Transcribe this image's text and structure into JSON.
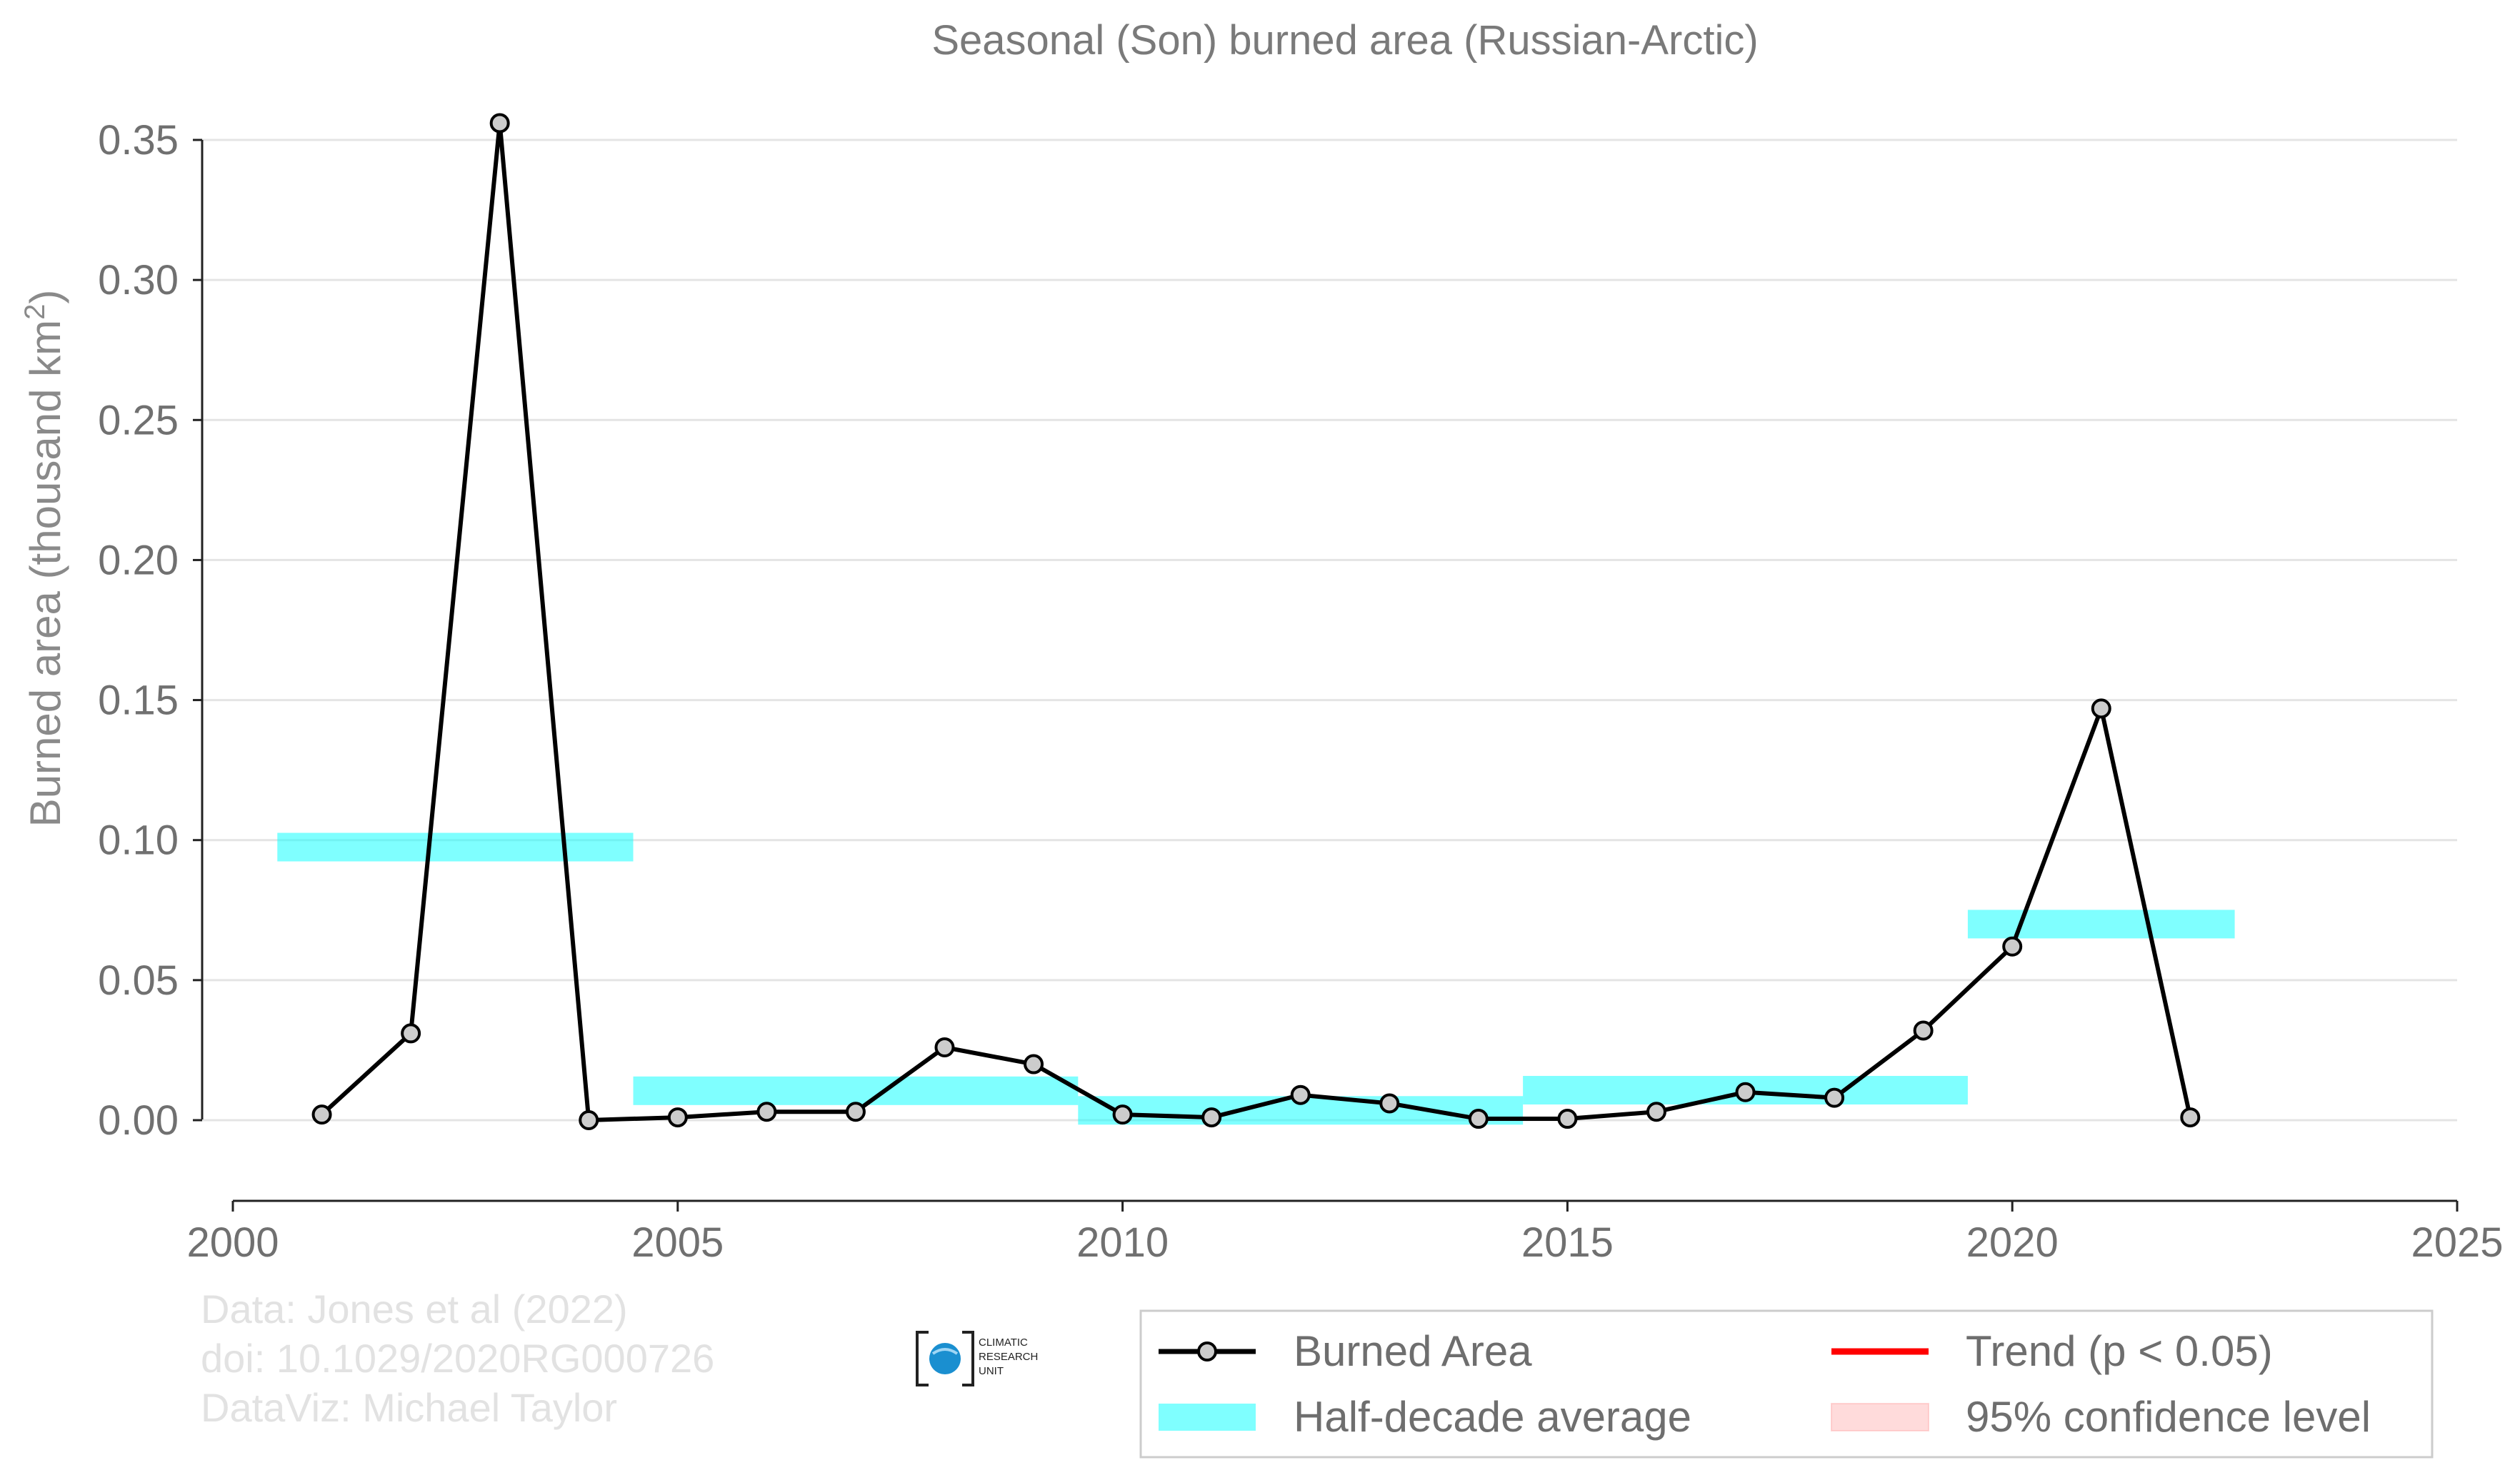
{
  "chart_data": {
    "type": "line",
    "title": "Seasonal (Son) burned area (Russian-Arctic)",
    "xlabel": "",
    "ylabel_main": "Burned area (thousand km",
    "ylabel_sup": "2",
    "ylabel_close": ")",
    "xlim": [
      2000,
      2025
    ],
    "ylim": [
      -0.029,
      0.35
    ],
    "xticks": [
      2000,
      2005,
      2010,
      2015,
      2020,
      2025
    ],
    "xtick_labels": [
      "2000",
      "2005",
      "2010",
      "2015",
      "2020",
      "2025"
    ],
    "yticks": [
      0.0,
      0.05,
      0.1,
      0.15,
      0.2,
      0.25,
      0.3,
      0.35
    ],
    "ytick_labels": [
      "0.00",
      "0.05",
      "0.10",
      "0.15",
      "0.20",
      "0.25",
      "0.30",
      "0.35"
    ],
    "grid": "horizontal",
    "legend_position": "bottom-right",
    "series": [
      {
        "name": "Burned Area",
        "color": "#000000",
        "marker_fill": "#cccccc",
        "x": [
          2001,
          2002,
          2003,
          2004,
          2005,
          2006,
          2007,
          2008,
          2009,
          2010,
          2011,
          2012,
          2013,
          2014,
          2015,
          2016,
          2017,
          2018,
          2019,
          2020,
          2021,
          2022
        ],
        "y": [
          0.002,
          0.031,
          0.356,
          0.0,
          0.001,
          0.003,
          0.003,
          0.026,
          0.02,
          0.002,
          0.001,
          0.009,
          0.006,
          0.0005,
          0.0005,
          0.003,
          0.01,
          0.008,
          0.032,
          0.062,
          0.147,
          0.001
        ]
      }
    ],
    "half_decade_average": {
      "name": "Half-decade average",
      "color": "#00ffff",
      "segments": [
        {
          "x_start": 2000.5,
          "x_end": 2004.5,
          "y": 0.0975
        },
        {
          "x_start": 2004.5,
          "x_end": 2009.5,
          "y": 0.0105
        },
        {
          "x_start": 2009.5,
          "x_end": 2014.5,
          "y": 0.0035
        },
        {
          "x_start": 2014.5,
          "x_end": 2019.5,
          "y": 0.0107
        },
        {
          "x_start": 2019.5,
          "x_end": 2022.5,
          "y": 0.07
        }
      ]
    },
    "legend": [
      {
        "label": "Burned Area",
        "kind": "line-marker",
        "color": "#000000"
      },
      {
        "label": "Trend (p < 0.05)",
        "kind": "line",
        "color": "#ff0000"
      },
      {
        "label": "Half-decade average",
        "kind": "band",
        "color": "#00ffff"
      },
      {
        "label": "95% confidence level",
        "kind": "band",
        "color": "#ffb0b0"
      }
    ]
  },
  "credits": {
    "line1": "Data: Jones et al (2022)",
    "line2": "doi: 10.1029/2020RG000726",
    "line3": "DataViz: Michael Taylor"
  },
  "logo": {
    "line1": "CLIMATIC",
    "line2": "RESEARCH",
    "line3": "UNIT",
    "color": "#1a8fd0"
  }
}
